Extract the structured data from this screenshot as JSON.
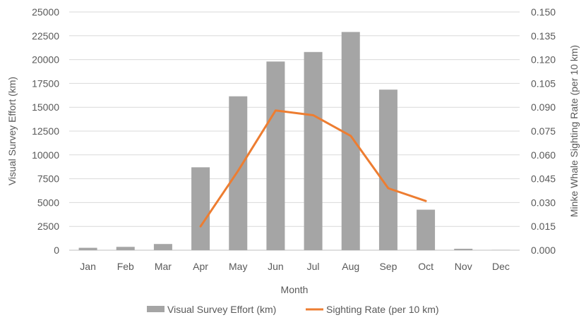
{
  "chart_data": {
    "type": "bar",
    "categories": [
      "Jan",
      "Feb",
      "Mar",
      "Apr",
      "May",
      "Jun",
      "Jul",
      "Aug",
      "Sep",
      "Oct",
      "Nov",
      "Dec"
    ],
    "series": [
      {
        "name": "Visual Survey Effort (km)",
        "type": "bar",
        "axis": "left",
        "color": "#a5a5a5",
        "values": [
          250,
          350,
          650,
          8700,
          16150,
          19800,
          20800,
          22900,
          16850,
          4250,
          150,
          30
        ]
      },
      {
        "name": "Sighting Rate (per 10 km)",
        "type": "line",
        "axis": "right",
        "color": "#ed7d31",
        "values": [
          null,
          null,
          null,
          0.015,
          0.05,
          0.088,
          0.085,
          0.072,
          0.039,
          0.031,
          null,
          null
        ]
      }
    ],
    "xlabel": "Month",
    "ylabel": "Visual Survey Effort (km)",
    "y2label": "Minke Whale Sighting Rate (per 10 km)",
    "ylim": [
      0,
      25000
    ],
    "y2lim": [
      0,
      0.15
    ],
    "yticks": [
      "0",
      "2500",
      "5000",
      "7500",
      "10000",
      "12500",
      "15000",
      "17500",
      "20000",
      "22500",
      "25000"
    ],
    "y2ticks": [
      "0.000",
      "0.015",
      "0.030",
      "0.045",
      "0.060",
      "0.075",
      "0.090",
      "0.105",
      "0.120",
      "0.135",
      "0.150"
    ],
    "grid": true,
    "legend": "bottom"
  }
}
